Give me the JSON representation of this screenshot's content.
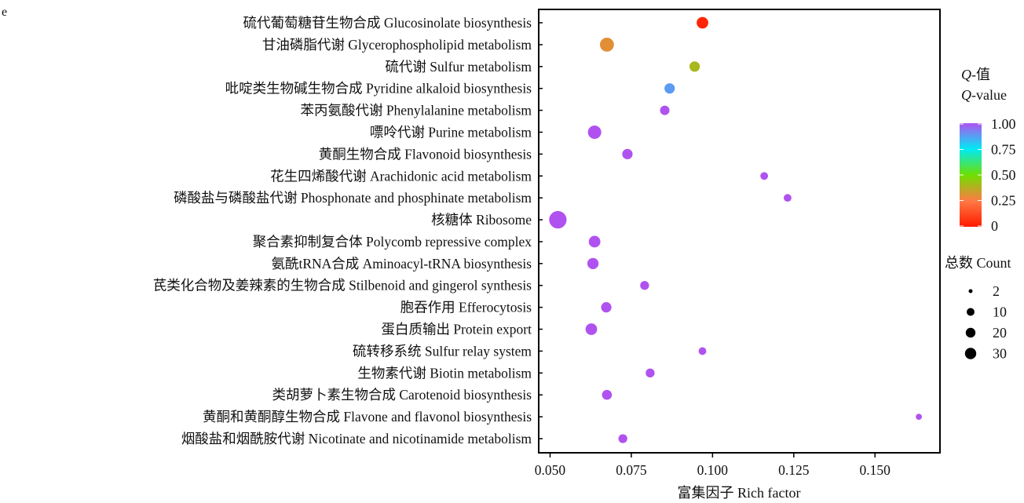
{
  "panel_label": "e",
  "chart_data": {
    "type": "scatter",
    "subtype": "bubble",
    "xlabel": "富集因子 Rich factor",
    "ylabel": "",
    "xlim": [
      0.0465,
      0.17
    ],
    "xticks": [
      0.05,
      0.075,
      0.1,
      0.125,
      0.15
    ],
    "xtick_labels": [
      "0.050",
      "0.075",
      "0.100",
      "0.125",
      "0.150"
    ],
    "categories": [
      "硫代葡萄糖苷生物合成 Glucosinolate biosynthesis",
      "甘油磷脂代谢 Glycerophospholipid metabolism",
      "硫代谢 Sulfur metabolism",
      "吡啶类生物碱生物合成 Pyridine alkaloid biosynthesis",
      "苯丙氨酸代谢 Phenylalanine metabolism",
      "嘌呤代谢 Purine metabolism",
      "黄酮生物合成 Flavonoid biosynthesis",
      "花生四烯酸代谢 Arachidonic acid metabolism",
      "磷酸盐与磷酸盐代谢 Phosphonate and phosphinate metabolism",
      "核糖体 Ribosome",
      "聚合素抑制复合体 Polycomb repressive complex",
      "氨酰tRNA合成 Aminoacyl-tRNA biosynthesis",
      "芪类化合物及姜辣素的生物合成 Stilbenoid and gingerol synthesis",
      "胞吞作用 Efferocytosis",
      "蛋白质输出 Protein export",
      "硫转移系统 Sulfur relay system",
      "生物素代谢 Biotin metabolism",
      "类胡萝卜素生物合成 Carotenoid biosynthesis",
      "黄酮和黄酮醇生物合成 Flavone and flavonol biosynthesis",
      "烟酸盐和烟酰胺代谢 Nicotinate and nicotinamide metabolism"
    ],
    "rich_factor": [
      0.0969,
      0.0675,
      0.0945,
      0.0868,
      0.0853,
      0.0637,
      0.0738,
      0.1159,
      0.1231,
      0.0524,
      0.0637,
      0.0632,
      0.0791,
      0.0673,
      0.0627,
      0.0969,
      0.0808,
      0.0675,
      0.1635,
      0.0724
    ],
    "count": [
      12,
      19,
      9,
      9,
      7,
      17,
      9,
      4,
      4,
      32,
      12,
      11,
      6,
      9,
      12,
      4,
      6,
      8,
      2,
      6
    ],
    "q_value": [
      0.03,
      0.3,
      0.4,
      0.88,
      1.0,
      1.0,
      1.0,
      1.0,
      1.0,
      1.0,
      1.0,
      1.0,
      1.0,
      1.0,
      1.0,
      1.0,
      1.0,
      1.0,
      1.0,
      1.0
    ],
    "color_legend": {
      "title_line1": "Q-值",
      "title_line2": "Q-value",
      "ticks": [
        1.0,
        0.75,
        0.5,
        0.25,
        0
      ],
      "tick_labels": [
        "1.00",
        "0.75",
        "0.50",
        "0.25",
        "0"
      ],
      "stops": [
        {
          "q": 0,
          "color": "#ff1a00"
        },
        {
          "q": 0.25,
          "color": "#ff7a45"
        },
        {
          "q": 0.5,
          "color": "#6ee000"
        },
        {
          "q": 0.75,
          "color": "#00eaf5"
        },
        {
          "q": 1.0,
          "color": "#b052f0"
        }
      ],
      "placement": "right"
    },
    "size_legend": {
      "title": "总数 Count",
      "values": [
        2,
        10,
        20,
        30
      ],
      "labels": [
        "2",
        "10",
        "20",
        "30"
      ],
      "placement": "right"
    }
  }
}
